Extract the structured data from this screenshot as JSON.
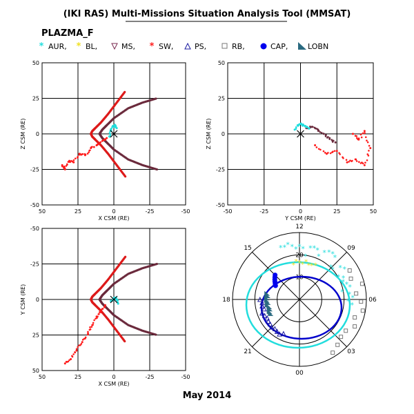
{
  "header": {
    "title": "(IKI RAS) Multi-Missions Situation Analysis Tool (MMSAT)",
    "dataset": "PLAZMA_F",
    "footer": "May 2014"
  },
  "legend": [
    {
      "label": "AUR,",
      "color": "#22dddd",
      "symbol": "asterisk"
    },
    {
      "label": "BL,",
      "color": "#f0e020",
      "symbol": "asterisk"
    },
    {
      "label": "MS,",
      "color": "#7a2a50",
      "symbol": "triangle-down"
    },
    {
      "label": "SW,",
      "color": "#ff1a1a",
      "symbol": "asterisk"
    },
    {
      "label": "PS,",
      "color": "#1a1aa0",
      "symbol": "triangle-up"
    },
    {
      "label": "RB,",
      "color": "#777777",
      "symbol": "square"
    },
    {
      "label": "CAP,",
      "color": "#0000ee",
      "symbol": "dot"
    },
    {
      "label": "LOBN",
      "color": "#2a6a80",
      "symbol": "flag"
    }
  ],
  "colors": {
    "magnetopause": "#6b2a3c",
    "bowshock": "#dd1a1a",
    "grid": "#000000",
    "polar_aur": "#22dddd",
    "polar_cap": "#0000cc"
  },
  "chart_data": [
    {
      "type": "scatter",
      "title": "",
      "xlabel": "X CSM (RE)",
      "ylabel": "Z CSM (RE)",
      "xlim": [
        50,
        -50
      ],
      "ylim": [
        -50,
        50
      ],
      "xticks": [
        50,
        25,
        0,
        -25,
        -50
      ],
      "yticks": [
        50,
        25,
        0,
        -25,
        -50
      ],
      "xtick_labels": [
        "50",
        "25",
        "0",
        "-25",
        "-50"
      ],
      "ytick_labels": [
        "50",
        "25",
        "0",
        "-25",
        "-50"
      ],
      "grid": true,
      "series": [
        {
          "kind": "boundary",
          "color": "#6b2a3c",
          "x": [
            -30,
            -20,
            -10,
            0,
            5,
            8,
            10,
            8,
            5,
            0,
            -10,
            -20,
            -30
          ],
          "y": [
            -25,
            -22,
            -18,
            -11,
            -6,
            -3,
            0,
            3,
            6,
            11,
            18,
            22,
            25
          ]
        },
        {
          "kind": "boundary",
          "color": "#dd1a1a",
          "x": [
            -8,
            -2,
            4,
            9,
            13,
            15,
            16,
            15,
            13,
            9,
            4,
            -2,
            -8
          ],
          "y": [
            -30,
            -22,
            -14,
            -8,
            -4,
            -2,
            0,
            2,
            4,
            8,
            14,
            22,
            30
          ]
        },
        {
          "kind": "orbit",
          "color": "#ff1a1a",
          "x": [
            36,
            34,
            31,
            28,
            24,
            20,
            16,
            12,
            8,
            5
          ],
          "y": [
            -22,
            -25,
            -19,
            -20,
            -14,
            -15,
            -10,
            -8,
            -5,
            -3
          ]
        },
        {
          "kind": "orbit",
          "color": "#22dddd",
          "x": [
            3,
            2,
            1,
            -1,
            -2
          ],
          "y": [
            -2,
            2,
            5,
            6,
            4
          ]
        }
      ]
    },
    {
      "type": "scatter",
      "title": "",
      "xlabel": "Y CSM (RE)",
      "ylabel": "Z CSM (RE)",
      "xlim": [
        -50,
        50
      ],
      "ylim": [
        -50,
        50
      ],
      "xticks": [
        -50,
        -25,
        0,
        25,
        50
      ],
      "yticks": [
        50,
        25,
        0,
        -25,
        -50
      ],
      "xtick_labels": [
        "-50",
        "-25",
        "0",
        "25",
        "50"
      ],
      "ytick_labels": [
        "50",
        "25",
        "0",
        "-25",
        "-50"
      ],
      "grid": true,
      "series": [
        {
          "kind": "orbit",
          "color": "#ff1a1a",
          "x": [
            10,
            18,
            25,
            32,
            38,
            44,
            48,
            44,
            40,
            36
          ],
          "y": [
            -8,
            -14,
            -12,
            -20,
            -18,
            -22,
            -10,
            2,
            -4,
            0
          ]
        },
        {
          "kind": "orbit",
          "color": "#6b2a3c",
          "x": [
            4,
            8,
            12,
            16,
            20,
            24
          ],
          "y": [
            4,
            5,
            3,
            0,
            -3,
            -6
          ]
        },
        {
          "kind": "orbit",
          "color": "#22dddd",
          "x": [
            -4,
            -2,
            0,
            2,
            4,
            6
          ],
          "y": [
            3,
            6,
            7,
            6,
            5,
            4
          ]
        }
      ]
    },
    {
      "type": "scatter",
      "title": "",
      "xlabel": "X CSM (RE)",
      "ylabel": "Y CSM (RE)",
      "xlim": [
        50,
        -50
      ],
      "ylim": [
        -50,
        50
      ],
      "xticks": [
        50,
        25,
        0,
        -25,
        -50
      ],
      "yticks": [
        -50,
        -25,
        0,
        25,
        50
      ],
      "xtick_labels": [
        "50",
        "25",
        "0",
        "-25",
        "-50"
      ],
      "ytick_labels": [
        "-50",
        "-25",
        "0",
        "25",
        "50"
      ],
      "grid": true,
      "series": [
        {
          "kind": "boundary",
          "color": "#6b2a3c",
          "x": [
            -30,
            -20,
            -10,
            0,
            5,
            8,
            10,
            8,
            5,
            0,
            -10,
            -20,
            -30
          ],
          "y": [
            -25,
            -22,
            -18,
            -11,
            -6,
            -3,
            0,
            3,
            6,
            11,
            18,
            22,
            25
          ]
        },
        {
          "kind": "boundary",
          "color": "#dd1a1a",
          "x": [
            -8,
            -2,
            4,
            9,
            13,
            15,
            16,
            15,
            13,
            9,
            4,
            -2,
            -8
          ],
          "y": [
            -30,
            -22,
            -14,
            -8,
            -4,
            -2,
            0,
            2,
            4,
            8,
            14,
            22,
            30
          ]
        },
        {
          "kind": "orbit",
          "color": "#ff1a1a",
          "x": [
            34,
            30,
            26,
            22,
            18,
            15,
            12,
            9,
            6
          ],
          "y": [
            45,
            42,
            36,
            30,
            24,
            18,
            12,
            8,
            4
          ]
        },
        {
          "kind": "orbit",
          "color": "#22dddd",
          "x": [
            2,
            0,
            -2,
            -3
          ],
          "y": [
            1,
            -1,
            0,
            3
          ]
        }
      ]
    },
    {
      "type": "polar",
      "title": "",
      "mlt_labels": [
        "12",
        "09",
        "06",
        "03",
        "00",
        "21",
        "18",
        "15"
      ],
      "radial_labels": [
        "20",
        "10"
      ],
      "grid": true,
      "series": [
        {
          "name": "AUR",
          "color": "#22dddd"
        },
        {
          "name": "BL",
          "color": "#f0e020"
        },
        {
          "name": "RB",
          "color": "#777777"
        },
        {
          "name": "CAP",
          "color": "#0000ee"
        },
        {
          "name": "PS",
          "color": "#1a1aa0"
        },
        {
          "name": "LOBN",
          "color": "#2a6a80"
        }
      ]
    }
  ]
}
